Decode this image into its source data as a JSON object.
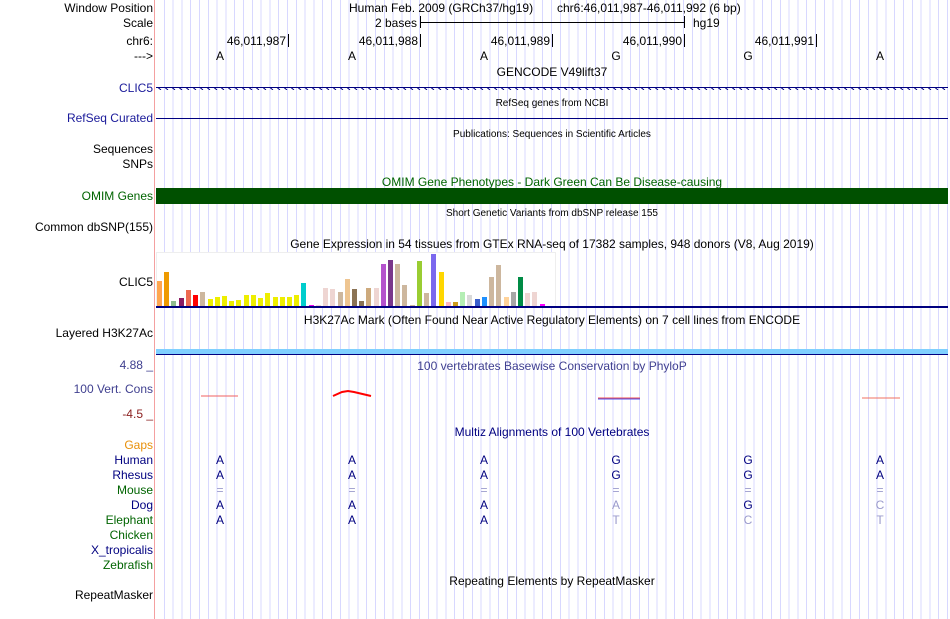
{
  "labels": {
    "window_position": "Window Position",
    "scale": "Scale",
    "chr": "chr6:",
    "strand": "--->",
    "clic5": "CLIC5",
    "refseq": "RefSeq Curated",
    "sequences": "Sequences",
    "snps": "SNPs",
    "omim": "OMIM Genes",
    "dbsnp": "Common dbSNP(155)",
    "gtex": "CLIC5",
    "h3k27ac": "Layered H3K27Ac",
    "cons_max": "4.88 _",
    "cons": "100 Vert. Cons",
    "cons_min": "-4.5 _",
    "gaps": "Gaps",
    "repeatmasker": "RepeatMasker"
  },
  "header": {
    "assembly": "Human Feb. 2009 (GRCh37/hg19)",
    "position": "chr6:46,011,987-46,011,992 (6 bp)",
    "scale_label": "2 bases",
    "scale_db": "hg19",
    "ticks": [
      "46,011,987",
      "46,011,988",
      "46,011,989",
      "46,011,990",
      "46,011,991"
    ],
    "bases": [
      "A",
      "A",
      "A",
      "G",
      "G",
      "A"
    ]
  },
  "tracks": {
    "gencode": "GENCODE V49lift37",
    "refseq": "RefSeq genes from NCBI",
    "publications": "Publications: Sequences in Scientific Articles",
    "omim": "OMIM Gene Phenotypes - Dark Green Can Be Disease-causing",
    "dbsnp": "Short Genetic Variants from dbSNP release 155",
    "gtex": "Gene Expression in 54 tissues from GTEx RNA-seq of 17382 samples, 948 donors (V8, Aug 2019)",
    "h3k27ac": "H3K27Ac Mark (Often Found Near Active Regulatory Elements) on 7 cell lines from ENCODE",
    "phylop": "100 vertebrates Basewise Conservation by PhyloP",
    "multiz": "Multiz Alignments of 100 Vertebrates",
    "repeat": "Repeating Elements by RepeatMasker"
  },
  "gtex": {
    "values": [
      78,
      105,
      15,
      25,
      51,
      33,
      45,
      21,
      27,
      30,
      15,
      18,
      33,
      33,
      24,
      39,
      27,
      27,
      27,
      33,
      72,
      3,
      2,
      57,
      54,
      45,
      84,
      54,
      15,
      57,
      57,
      132,
      144,
      132,
      66,
      3,
      141,
      39,
      162,
      105,
      12,
      12,
      45,
      33,
      21,
      27,
      90,
      129,
      27,
      45,
      90,
      39,
      45,
      6
    ],
    "colors": [
      "#ffa54f",
      "#ee9a00",
      "#8fbc8f",
      "#8b1c62",
      "#ee6a50",
      "#ff0000",
      "#cdb79e",
      "#eeee00",
      "#eeee00",
      "#eeee00",
      "#eeee00",
      "#eeee00",
      "#eeee00",
      "#eeee00",
      "#eeee00",
      "#eeee00",
      "#eeee00",
      "#eeee00",
      "#eeee00",
      "#eeee00",
      "#00cdcd",
      "#ee00ee",
      "#eed5d2",
      "#eed5d2",
      "#eed5d2",
      "#cdb79e",
      "#eec591",
      "#8b7355",
      "#8b7355",
      "#cdaa7d",
      "#eed5d2",
      "#b452cd",
      "#7a378b",
      "#cdb79e",
      "#cdb79e",
      "#cdb79e",
      "#9acd32",
      "#cdb79e",
      "#7b68ee",
      "#ffd700",
      "#ffb6c1",
      "#cd9b1d",
      "#b4eeb4",
      "#d9d9d9",
      "#3a5fcd",
      "#1e90ff",
      "#cdb79e",
      "#cdb79e",
      "#ffd39b",
      "#a6a6a6",
      "#008b45",
      "#eed5d2",
      "#eed5d2",
      "#ff00ff"
    ]
  },
  "species": [
    {
      "name": "Gaps",
      "color": "#e8900a",
      "bases": [
        "",
        "",
        "",
        "",
        "",
        ""
      ],
      "shade": []
    },
    {
      "name": "Human",
      "color": "#000080",
      "bases": [
        "A",
        "A",
        "A",
        "G",
        "G",
        "A"
      ],
      "shade": []
    },
    {
      "name": "Rhesus",
      "color": "#000080",
      "bases": [
        "A",
        "A",
        "A",
        "G",
        "G",
        "A"
      ],
      "shade": []
    },
    {
      "name": "Mouse",
      "color": "#006400",
      "bases": [
        "=",
        "=",
        "=",
        "=",
        "=",
        "="
      ],
      "shade": [
        0,
        1,
        2,
        3,
        4,
        5
      ]
    },
    {
      "name": "Dog",
      "color": "#000080",
      "bases": [
        "A",
        "A",
        "A",
        "A",
        "G",
        "C"
      ],
      "shade": [
        3,
        5
      ]
    },
    {
      "name": "Elephant",
      "color": "#006400",
      "bases": [
        "A",
        "A",
        "A",
        "T",
        "C",
        "T"
      ],
      "shade": [
        3,
        4,
        5
      ]
    },
    {
      "name": "Chicken",
      "color": "#006400",
      "bases": [
        "",
        "",
        "",
        "",
        "",
        ""
      ],
      "shade": []
    },
    {
      "name": "X_tropicalis",
      "color": "#000080",
      "bases": [
        "",
        "",
        "",
        "",
        "",
        ""
      ],
      "shade": []
    },
    {
      "name": "Zebrafish",
      "color": "#006400",
      "bases": [
        "",
        "",
        "",
        "",
        "",
        ""
      ],
      "shade": []
    }
  ]
}
